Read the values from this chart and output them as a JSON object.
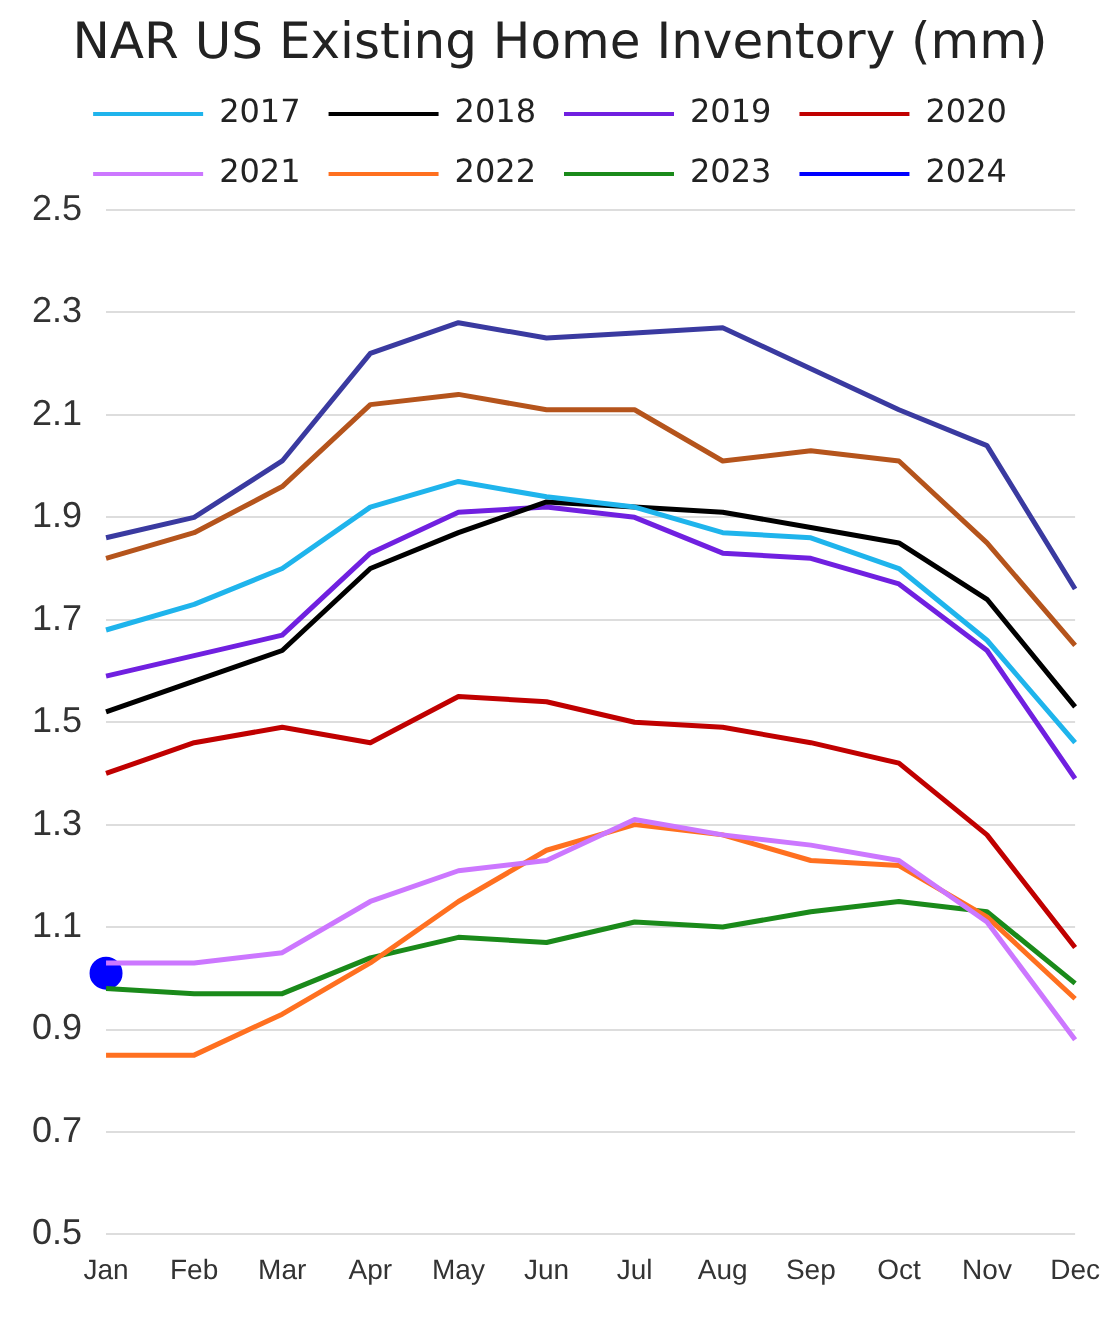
{
  "chart_data": {
    "type": "line",
    "title": "NAR US Existing Home Inventory (mm)",
    "categories": [
      "Jan",
      "Feb",
      "Mar",
      "Apr",
      "May",
      "Jun",
      "Jul",
      "Aug",
      "Sep",
      "Oct",
      "Nov",
      "Dec"
    ],
    "series": [
      {
        "color": "#3a3aa0",
        "values": [
          1.86,
          1.9,
          2.01,
          2.22,
          2.28,
          2.25,
          2.26,
          2.27,
          2.19,
          2.11,
          2.04,
          1.76
        ]
      },
      {
        "color": "#b5541c",
        "values": [
          1.82,
          1.87,
          1.96,
          2.12,
          2.14,
          2.11,
          2.11,
          2.01,
          2.03,
          2.01,
          1.85,
          1.65
        ]
      },
      {
        "name": "2017",
        "color": "#1fb4ec",
        "values": [
          1.68,
          1.73,
          1.8,
          1.92,
          1.97,
          1.94,
          1.92,
          1.87,
          1.86,
          1.8,
          1.66,
          1.46
        ]
      },
      {
        "name": "2018",
        "color": "#000000",
        "values": [
          1.52,
          1.58,
          1.64,
          1.8,
          1.87,
          1.93,
          1.92,
          1.91,
          1.88,
          1.85,
          1.74,
          1.53
        ]
      },
      {
        "name": "2019",
        "color": "#7020e0",
        "values": [
          1.59,
          1.63,
          1.67,
          1.83,
          1.91,
          1.92,
          1.9,
          1.83,
          1.82,
          1.77,
          1.64,
          1.39
        ]
      },
      {
        "name": "2020",
        "color": "#c00000",
        "values": [
          1.4,
          1.46,
          1.49,
          1.46,
          1.55,
          1.54,
          1.5,
          1.49,
          1.46,
          1.42,
          1.28,
          1.06
        ]
      },
      {
        "name": "2021",
        "color": "#cc77ff",
        "values": [
          1.03,
          1.03,
          1.05,
          1.15,
          1.21,
          1.23,
          1.31,
          1.28,
          1.26,
          1.23,
          1.11,
          0.88
        ]
      },
      {
        "name": "2022",
        "color": "#ff7020",
        "values": [
          0.85,
          0.85,
          0.93,
          1.03,
          1.15,
          1.25,
          1.3,
          1.28,
          1.23,
          1.22,
          1.12,
          0.96
        ]
      },
      {
        "name": "2023",
        "color": "#1a8a1a",
        "values": [
          0.98,
          0.97,
          0.97,
          1.04,
          1.08,
          1.07,
          1.11,
          1.1,
          1.13,
          1.15,
          1.13,
          0.99
        ]
      },
      {
        "name": "2024",
        "color": "#0000ff",
        "marker": "circle",
        "values": [
          1.01,
          null,
          null,
          null,
          null,
          null,
          null,
          null,
          null,
          null,
          null,
          null
        ]
      }
    ],
    "ylim": [
      0.5,
      2.5
    ],
    "yticks": [
      0.5,
      0.7,
      0.9,
      1.1,
      1.3,
      1.5,
      1.7,
      1.9,
      2.1,
      2.3,
      2.5
    ],
    "grid": "y",
    "legend": "top",
    "marker": "none",
    "line_style": "solid"
  }
}
